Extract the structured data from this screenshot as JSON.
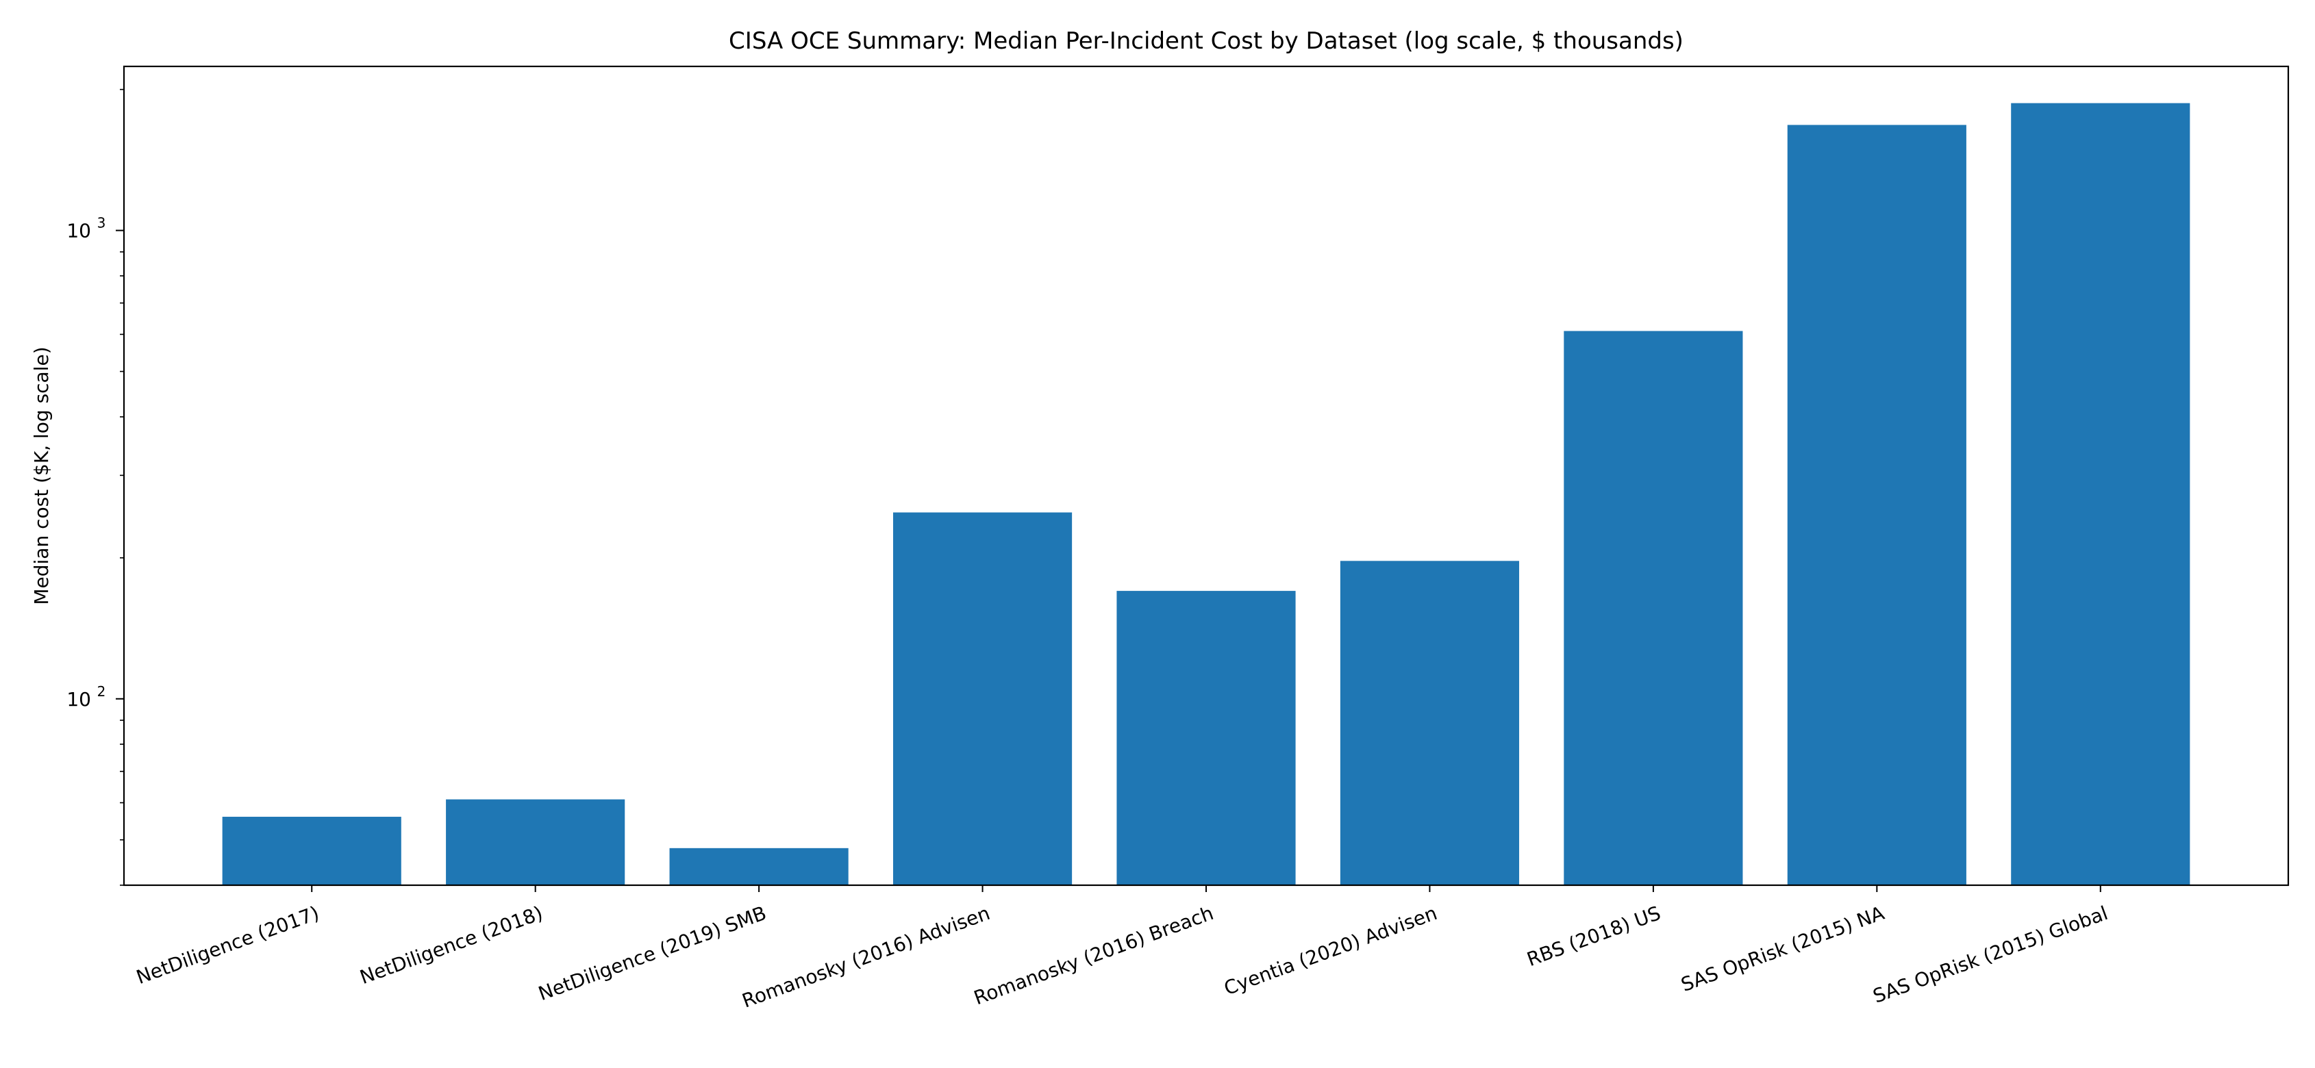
{
  "chart_data": {
    "type": "bar",
    "title": "CISA OCE Summary: Median Per-Incident Cost by Dataset (log scale, $ thousands)",
    "xlabel": "",
    "ylabel": "Median cost ($K, log scale)",
    "yscale": "log",
    "ylim": [
      40,
      2240
    ],
    "grid": false,
    "bar_color": "#1f77b4",
    "categories": [
      "NetDiligence (2017)",
      "NetDiligence (2018)",
      "NetDiligence (2019) SMB",
      "Romanosky (2016) Advisen",
      "Romanosky (2016) Breach",
      "Cyentia (2020) Advisen",
      "RBS (2018) US",
      "SAS OpRisk (2015) NA",
      "SAS OpRisk (2015) Global"
    ],
    "values": [
      56,
      61,
      48,
      250,
      170,
      197,
      610,
      1680,
      1870
    ],
    "y_major_ticks": [
      {
        "value": 100,
        "base": "10",
        "exp": "2"
      },
      {
        "value": 1000,
        "base": "10",
        "exp": "3"
      }
    ]
  }
}
